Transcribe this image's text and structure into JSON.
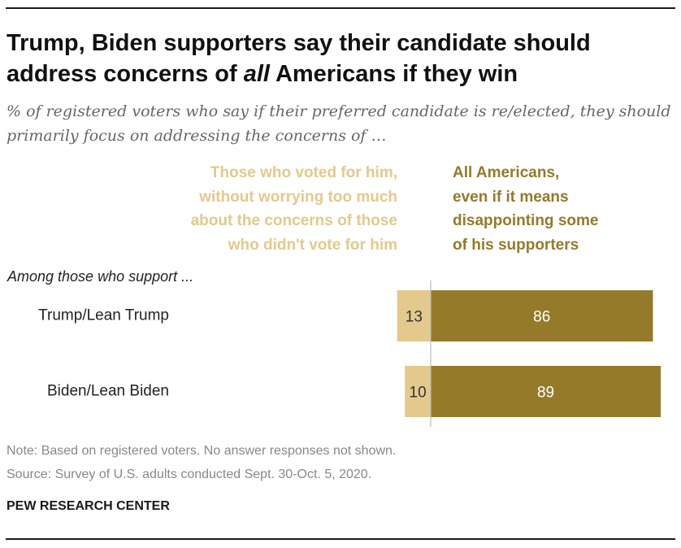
{
  "title_line1": "Trump, Biden supporters say their candidate should",
  "title_line2_pre": "address concerns of ",
  "title_line2_em": "all",
  "title_line2_post": " Americans if they win",
  "subtitle": "% of registered voters who say if their preferred candidate is re/elected, they should primarily focus on addressing the concerns of …",
  "legend_left": "Those who voted for him,\nwithout worrying too much\nabout the concerns of those\nwho didn't vote for him",
  "legend_right": "All Americans,\neven if it means\ndisappointing some\nof his supporters",
  "group_label": "Among those who support ...",
  "note": "Note: Based on registered voters. No answer responses not shown.",
  "source": "Source: Survey of U.S. adults conducted Sept. 30-Oct. 5, 2020.",
  "org": "PEW RESEARCH CENTER",
  "chart_data": {
    "type": "bar",
    "orientation": "horizontal",
    "stacked": "diverging",
    "categories": [
      "Trump/Lean Trump",
      "Biden/Lean Biden"
    ],
    "series": [
      {
        "name": "Those who voted for him, without worrying too much about the concerns of those who didn't vote for him",
        "values": [
          13,
          10
        ],
        "color": "#e4c98c"
      },
      {
        "name": "All Americans, even if it means disappointing some of his supporters",
        "values": [
          86,
          89
        ],
        "color": "#957a2a"
      }
    ],
    "data_labels": true
  },
  "colors": {
    "left_series": "#e4c98c",
    "right_series": "#957a2a",
    "axis": "#bbbbbb"
  }
}
